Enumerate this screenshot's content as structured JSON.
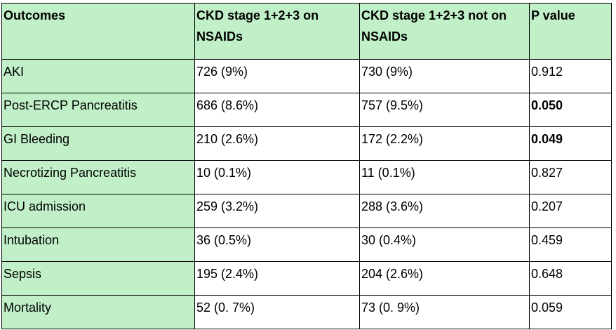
{
  "table": {
    "header": [
      "Outcomes",
      "CKD stage 1+2+3 on NSAIDs",
      "CKD stage 1+2+3 not on NSAIDs",
      "P value"
    ],
    "rows": [
      [
        "AKI",
        "726 (9%)",
        "730 (9%)",
        "0.912"
      ],
      [
        "Post-ERCP Pancreatitis",
        "686 (8.6%)",
        "757 (9.5%)",
        "0.050"
      ],
      [
        "GI Bleeding",
        "210 (2.6%)",
        "172 (2.2%)",
        "0.049"
      ],
      [
        "Necrotizing Pancreatitis",
        "10 (0.1%)",
        "11 (0.1%)",
        "0.827"
      ],
      [
        "ICU admission",
        "259 (3.2%)",
        "288 (3.6%)",
        "0.207"
      ],
      [
        "Intubation",
        "36 (0.5%)",
        "30 (0.4%)",
        "0.459"
      ],
      [
        "Sepsis",
        "195 (2.4%)",
        "204 (2.6%)",
        "0.648"
      ],
      [
        "Mortality",
        "52 (0. 7%)",
        "73 (0. 9%)",
        "0.059"
      ]
    ]
  }
}
